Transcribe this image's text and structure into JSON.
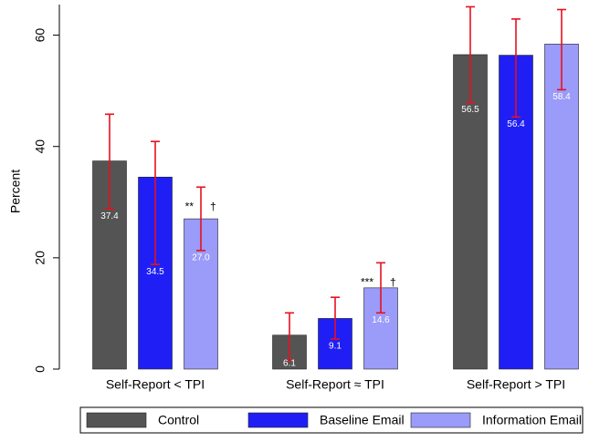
{
  "chart_data": {
    "type": "bar",
    "y_label": "Percent",
    "categories": [
      "Self-Report < TPI",
      "Self-Report ≈ TPI",
      "Self-Report > TPI"
    ],
    "series": [
      {
        "name": "Control",
        "color": "#545454",
        "values": [
          37.4,
          6.1,
          56.5
        ],
        "value_labels": [
          "37.4",
          "6.1",
          "56.5"
        ],
        "ci_low": [
          28.8,
          1.6,
          47.9
        ],
        "ci_high": [
          45.8,
          10.1,
          65.1
        ]
      },
      {
        "name": "Baseline Email",
        "color": "#1f1ff5",
        "values": [
          34.5,
          9.1,
          56.4
        ],
        "value_labels": [
          "34.5",
          "9.1",
          "56.4"
        ],
        "ci_low": [
          18.8,
          5.4,
          45.3
        ],
        "ci_high": [
          40.9,
          12.9,
          62.9
        ]
      },
      {
        "name": "Information Email",
        "color": "#9b9bfa",
        "values": [
          27.0,
          14.6,
          58.4
        ],
        "value_labels": [
          "27.0",
          "14.6",
          "58.4"
        ],
        "ci_low": [
          21.3,
          10.1,
          50.2
        ],
        "ci_high": [
          32.7,
          19.1,
          64.6
        ]
      }
    ],
    "annotations": [
      {
        "category": 0,
        "series": 2,
        "text": "**"
      },
      {
        "category": 0,
        "series": 2,
        "text": "†"
      },
      {
        "category": 1,
        "series": 2,
        "text": "***"
      },
      {
        "category": 1,
        "series": 2,
        "text": "†"
      }
    ],
    "error_color": "#e8101e",
    "ylim": [
      0,
      65.5
    ],
    "yticks": [
      0,
      20,
      40,
      60
    ],
    "grid": false
  }
}
